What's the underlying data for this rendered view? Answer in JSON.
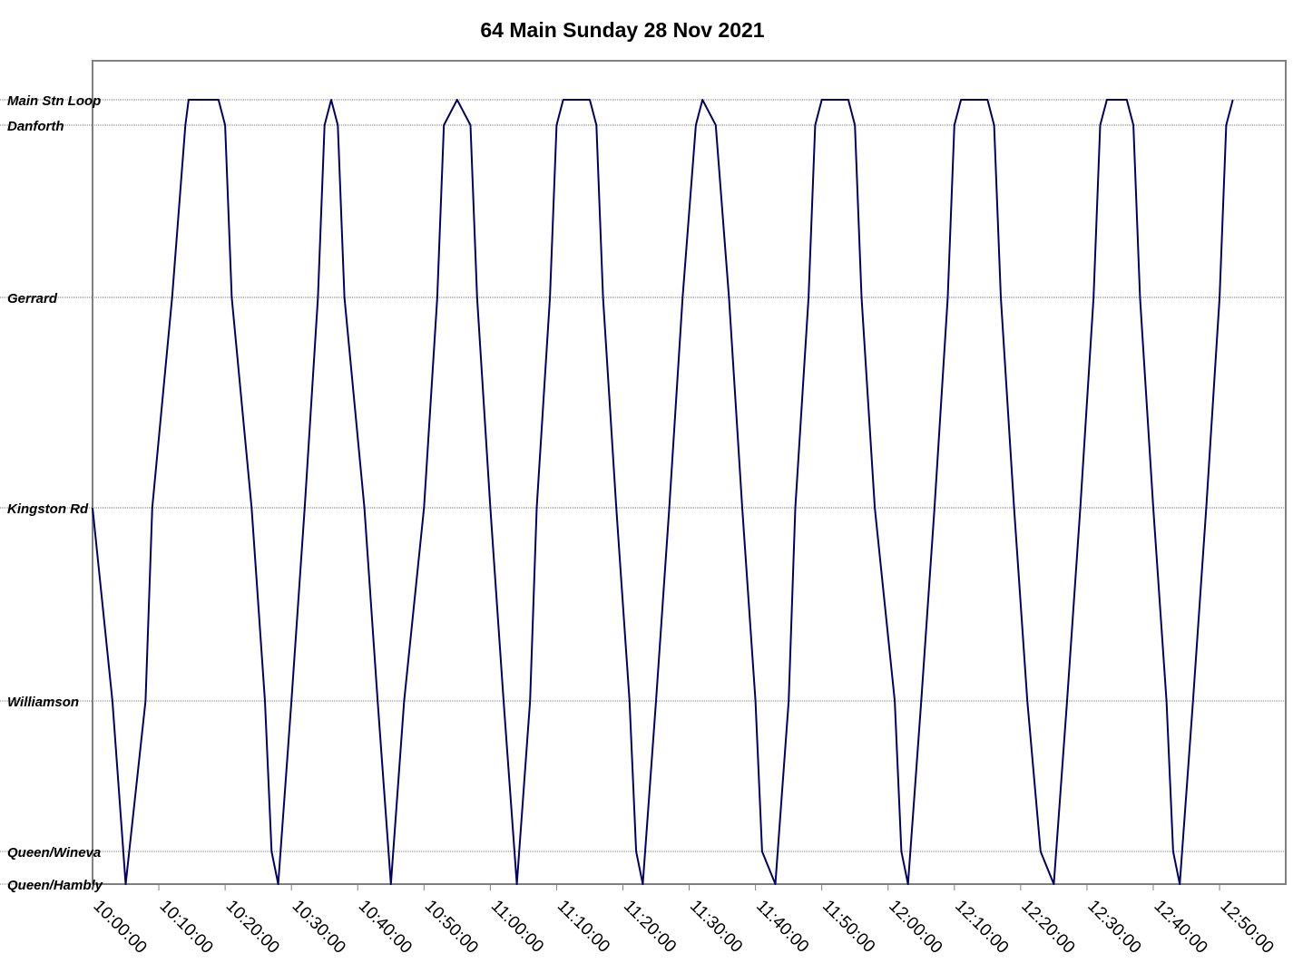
{
  "chart_data": {
    "type": "line",
    "title": "64 Main Sunday 28 Nov 2021",
    "y_stops": [
      {
        "label": "Main Stn Loop"
      },
      {
        "label": "Danforth"
      },
      {
        "label": "Gerrard"
      },
      {
        "label": "Kingston Rd"
      },
      {
        "label": "Williamson"
      },
      {
        "label": "Queen/Wineva"
      },
      {
        "label": "Queen/Hambly"
      }
    ],
    "x_ticks": [
      "10:00:00",
      "10:10:00",
      "10:20:00",
      "10:30:00",
      "10:40:00",
      "10:50:00",
      "11:00:00",
      "11:10:00",
      "11:20:00",
      "11:30:00",
      "11:40:00",
      "11:50:00",
      "12:00:00",
      "12:10:00",
      "12:20:00",
      "12:30:00",
      "12:40:00",
      "12:50:00"
    ],
    "xlim": [
      "10:00:00",
      "12:59:59"
    ],
    "grid": "horizontal dotted lines at stops",
    "series": [
      {
        "color": "#000066",
        "points": [
          [
            "10:00:00",
            "Kingston Rd"
          ],
          [
            "10:03:00",
            "Williamson"
          ],
          [
            "10:05:00",
            "Queen/Hambly"
          ],
          [
            "10:08:00",
            "Williamson"
          ],
          [
            "10:09:00",
            "Kingston Rd"
          ],
          [
            "10:12:00",
            "Gerrard"
          ],
          [
            "10:14:00",
            "Danforth"
          ],
          [
            "10:14:30",
            "Main Stn Loop"
          ],
          [
            "10:19:00",
            "Main Stn Loop"
          ],
          [
            "10:20:00",
            "Danforth"
          ],
          [
            "10:21:00",
            "Gerrard"
          ],
          [
            "10:24:00",
            "Kingston Rd"
          ],
          [
            "10:26:00",
            "Williamson"
          ],
          [
            "10:27:00",
            "Queen/Wineva"
          ],
          [
            "10:28:00",
            "Queen/Hambly"
          ],
          [
            "10:30:00",
            "Williamson"
          ],
          [
            "10:32:00",
            "Kingston Rd"
          ],
          [
            "10:34:00",
            "Gerrard"
          ],
          [
            "10:35:00",
            "Danforth"
          ],
          [
            "10:36:00",
            "Main Stn Loop"
          ],
          [
            "10:37:00",
            "Danforth"
          ],
          [
            "10:38:00",
            "Gerrard"
          ],
          [
            "10:41:00",
            "Kingston Rd"
          ],
          [
            "10:43:00",
            "Williamson"
          ],
          [
            "10:45:00",
            "Queen/Hambly"
          ],
          [
            "10:47:00",
            "Williamson"
          ],
          [
            "10:50:00",
            "Kingston Rd"
          ],
          [
            "10:52:00",
            "Gerrard"
          ],
          [
            "10:53:00",
            "Danforth"
          ],
          [
            "10:55:00",
            "Main Stn Loop"
          ],
          [
            "10:57:00",
            "Danforth"
          ],
          [
            "10:58:00",
            "Gerrard"
          ],
          [
            "11:00:00",
            "Kingston Rd"
          ],
          [
            "11:02:00",
            "Williamson"
          ],
          [
            "11:04:00",
            "Queen/Hambly"
          ],
          [
            "11:06:00",
            "Williamson"
          ],
          [
            "11:07:00",
            "Kingston Rd"
          ],
          [
            "11:09:00",
            "Gerrard"
          ],
          [
            "11:10:00",
            "Danforth"
          ],
          [
            "11:11:00",
            "Main Stn Loop"
          ],
          [
            "11:15:00",
            "Main Stn Loop"
          ],
          [
            "11:16:00",
            "Danforth"
          ],
          [
            "11:17:00",
            "Gerrard"
          ],
          [
            "11:19:00",
            "Kingston Rd"
          ],
          [
            "11:21:00",
            "Williamson"
          ],
          [
            "11:22:00",
            "Queen/Wineva"
          ],
          [
            "11:23:00",
            "Queen/Hambly"
          ],
          [
            "11:25:00",
            "Williamson"
          ],
          [
            "11:27:00",
            "Kingston Rd"
          ],
          [
            "11:29:00",
            "Gerrard"
          ],
          [
            "11:31:00",
            "Danforth"
          ],
          [
            "11:32:00",
            "Main Stn Loop"
          ],
          [
            "11:34:00",
            "Danforth"
          ],
          [
            "11:36:00",
            "Gerrard"
          ],
          [
            "11:38:00",
            "Kingston Rd"
          ],
          [
            "11:40:00",
            "Williamson"
          ],
          [
            "11:41:00",
            "Queen/Wineva"
          ],
          [
            "11:43:00",
            "Queen/Hambly"
          ],
          [
            "11:45:00",
            "Williamson"
          ],
          [
            "11:46:00",
            "Kingston Rd"
          ],
          [
            "11:48:00",
            "Gerrard"
          ],
          [
            "11:49:00",
            "Danforth"
          ],
          [
            "11:50:00",
            "Main Stn Loop"
          ],
          [
            "11:54:00",
            "Main Stn Loop"
          ],
          [
            "11:55:00",
            "Danforth"
          ],
          [
            "11:56:00",
            "Gerrard"
          ],
          [
            "11:58:00",
            "Kingston Rd"
          ],
          [
            "12:01:00",
            "Williamson"
          ],
          [
            "12:02:00",
            "Queen/Wineva"
          ],
          [
            "12:03:00",
            "Queen/Hambly"
          ],
          [
            "12:05:00",
            "Williamson"
          ],
          [
            "12:07:00",
            "Kingston Rd"
          ],
          [
            "12:09:00",
            "Gerrard"
          ],
          [
            "12:10:00",
            "Danforth"
          ],
          [
            "12:11:00",
            "Main Stn Loop"
          ],
          [
            "12:15:00",
            "Main Stn Loop"
          ],
          [
            "12:16:00",
            "Danforth"
          ],
          [
            "12:17:00",
            "Gerrard"
          ],
          [
            "12:19:00",
            "Kingston Rd"
          ],
          [
            "12:21:00",
            "Williamson"
          ],
          [
            "12:23:00",
            "Queen/Wineva"
          ],
          [
            "12:25:00",
            "Queen/Hambly"
          ],
          [
            "12:27:00",
            "Williamson"
          ],
          [
            "12:29:00",
            "Kingston Rd"
          ],
          [
            "12:31:00",
            "Gerrard"
          ],
          [
            "12:32:00",
            "Danforth"
          ],
          [
            "12:33:00",
            "Main Stn Loop"
          ],
          [
            "12:36:00",
            "Main Stn Loop"
          ],
          [
            "12:37:00",
            "Danforth"
          ],
          [
            "12:38:00",
            "Gerrard"
          ],
          [
            "12:40:00",
            "Kingston Rd"
          ],
          [
            "12:42:00",
            "Williamson"
          ],
          [
            "12:43:00",
            "Queen/Wineva"
          ],
          [
            "12:44:00",
            "Queen/Hambly"
          ],
          [
            "12:46:00",
            "Williamson"
          ],
          [
            "12:48:00",
            "Kingston Rd"
          ],
          [
            "12:50:00",
            "Gerrard"
          ],
          [
            "12:51:00",
            "Danforth"
          ],
          [
            "12:52:00",
            "Main Stn Loop"
          ]
        ]
      }
    ]
  }
}
